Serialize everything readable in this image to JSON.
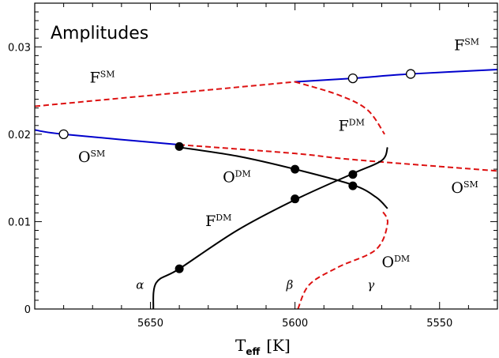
{
  "chart_data": {
    "type": "line",
    "title": "Amplitudes",
    "xlabel": "T",
    "xlabel_sub": "eff",
    "xlabel_unit": "[K]",
    "xlim": [
      5690,
      5530
    ],
    "ylim": [
      0,
      0.035
    ],
    "x_ticks": [
      5650,
      5600,
      5550
    ],
    "x_tick_labels": [
      "5650",
      "5600",
      "5550"
    ],
    "y_ticks": [
      0,
      0.01,
      0.02,
      0.03
    ],
    "y_tick_labels": [
      "0",
      "0.01",
      "0.02",
      "0.03"
    ],
    "grid": false,
    "colors": {
      "single_mode": "#0000cc",
      "double_mode_unstable": "#dd1111",
      "double_mode_stable": "#000000"
    },
    "series": [
      {
        "id": "F-SM-unstable",
        "style": "dashed",
        "color": "#dd1111",
        "points": [
          [
            5690,
            0.0232
          ],
          [
            5600,
            0.026
          ]
        ]
      },
      {
        "id": "F-SM-stable",
        "style": "solid",
        "color": "#0000cc",
        "points": [
          [
            5600,
            0.026
          ],
          [
            5580,
            0.0264
          ],
          [
            5560,
            0.0269
          ],
          [
            5530,
            0.0274
          ]
        ]
      },
      {
        "id": "O-SM-stable",
        "style": "solid",
        "color": "#0000cc",
        "points": [
          [
            5690,
            0.0205
          ],
          [
            5680,
            0.02
          ],
          [
            5640,
            0.0188
          ]
        ]
      },
      {
        "id": "O-SM-unstable",
        "style": "dashed",
        "color": "#dd1111",
        "points": [
          [
            5640,
            0.0188
          ],
          [
            5600,
            0.0178
          ],
          [
            5580,
            0.0171
          ],
          [
            5530,
            0.0158
          ]
        ]
      },
      {
        "id": "F-DM-stable",
        "style": "solid",
        "color": "#000000",
        "points": [
          [
            5649,
            0
          ],
          [
            5648,
            0.003
          ],
          [
            5640,
            0.0046
          ],
          [
            5620,
            0.009
          ],
          [
            5600,
            0.0125
          ],
          [
            5580,
            0.0155
          ],
          [
            5570,
            0.017
          ],
          [
            5568,
            0.0185
          ]
        ]
      },
      {
        "id": "O-DM-stable",
        "style": "solid",
        "color": "#000000",
        "points": [
          [
            5640,
            0.0185
          ],
          [
            5620,
            0.0175
          ],
          [
            5600,
            0.016
          ],
          [
            5580,
            0.0142
          ],
          [
            5572,
            0.0128
          ],
          [
            5568,
            0.0115
          ]
        ]
      },
      {
        "id": "F-DM-unstable",
        "style": "dashed",
        "color": "#dd1111",
        "points": [
          [
            5600,
            0.026
          ],
          [
            5585,
            0.0245
          ],
          [
            5575,
            0.0228
          ],
          [
            5569,
            0.02
          ]
        ]
      },
      {
        "id": "O-DM-unstable",
        "style": "dashed",
        "color": "#dd1111",
        "points": [
          [
            5599,
            0
          ],
          [
            5595,
            0.0028
          ],
          [
            5585,
            0.0048
          ],
          [
            5572,
            0.0068
          ],
          [
            5568,
            0.0098
          ],
          [
            5570,
            0.0113
          ]
        ]
      }
    ],
    "markers": {
      "open": [
        [
          5680,
          0.02
        ],
        [
          5580,
          0.0264
        ],
        [
          5560,
          0.0269
        ]
      ],
      "filled": [
        [
          5640,
          0.0186
        ],
        [
          5600,
          0.016
        ],
        [
          5580,
          0.0154
        ],
        [
          5580,
          0.0141
        ],
        [
          5600,
          0.0126
        ],
        [
          5640,
          0.0046
        ]
      ]
    },
    "curve_labels": [
      {
        "base": "F",
        "sup": "SM",
        "x": 5671,
        "y": 0.0259
      },
      {
        "base": "F",
        "sup": "SM",
        "x": 5545,
        "y": 0.0296
      },
      {
        "base": "O",
        "sup": "SM",
        "x": 5675,
        "y": 0.0168
      },
      {
        "base": "O",
        "sup": "SM",
        "x": 5546,
        "y": 0.0133
      },
      {
        "base": "F",
        "sup": "DM",
        "x": 5585,
        "y": 0.0204
      },
      {
        "base": "O",
        "sup": "DM",
        "x": 5625,
        "y": 0.0145
      },
      {
        "base": "F",
        "sup": "DM",
        "x": 5631,
        "y": 0.0095
      },
      {
        "base": "O",
        "sup": "DM",
        "x": 5570,
        "y": 0.0048
      }
    ],
    "point_labels": [
      {
        "text": "α",
        "x": 5655,
        "y": 0.0023
      },
      {
        "text": "β",
        "x": 5603,
        "y": 0.0023
      },
      {
        "text": "γ",
        "x": 5575,
        "y": 0.0023
      }
    ]
  }
}
